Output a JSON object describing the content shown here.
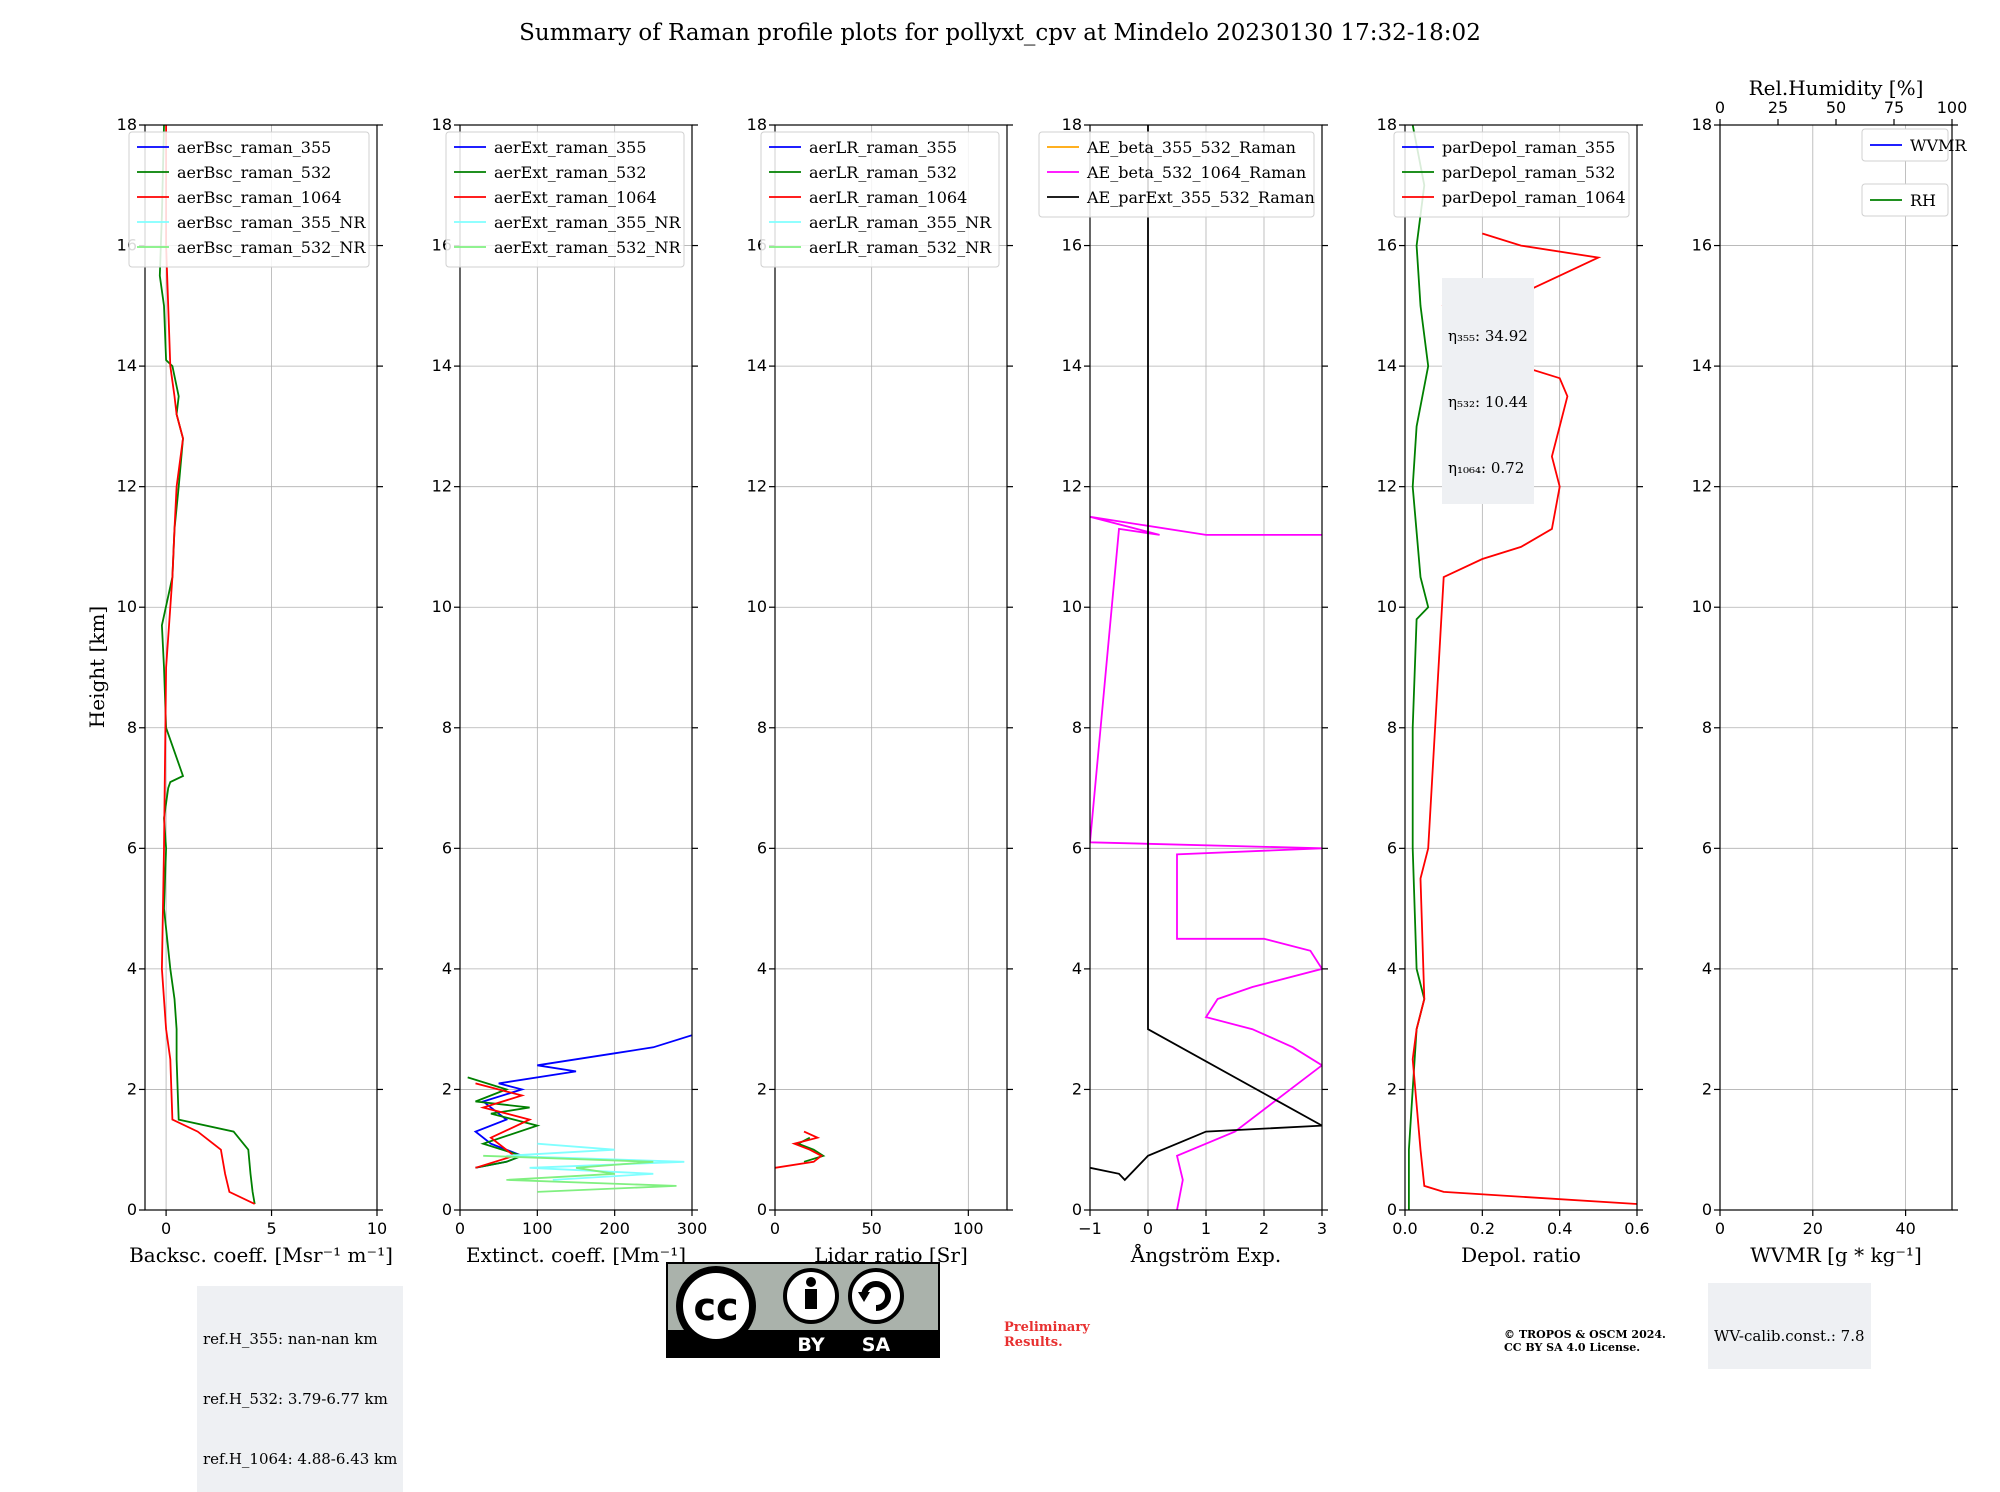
{
  "title": "Summary of Raman profile plots for pollyxt_cpv at Mindelo 20230130 17:32-18:02",
  "ylabel": "Height [km]",
  "colors": {
    "blue": "#0000ff",
    "green": "#008000",
    "red": "#ff0000",
    "cyan": "#80ffff",
    "lightgreen": "#80f080",
    "magenta": "#ff00ff",
    "orange": "#ffa500",
    "black": "#000000"
  },
  "chart_data": [
    {
      "type": "line",
      "xlabel": "Backsc. coeff. [Msr⁻¹ m⁻¹]",
      "xlim": [
        -1,
        10
      ],
      "ylim": [
        0,
        18
      ],
      "xticks": [
        0,
        5,
        10
      ],
      "yticks": [
        0,
        2,
        4,
        6,
        8,
        10,
        12,
        14,
        16,
        18
      ],
      "grid": true,
      "legend_position": "top-right",
      "series": [
        {
          "name": "aerBsc_raman_355",
          "color": "blue",
          "x": [],
          "y": []
        },
        {
          "name": "aerBsc_raman_532",
          "color": "green",
          "x": [
            4.2,
            4.1,
            4.0,
            3.9,
            3.2,
            0.6,
            0.5,
            0.5,
            0.4,
            0.2,
            -0.1,
            0.0,
            -0.1,
            0.1,
            0.2,
            0.8,
            0.0,
            -0.1,
            -0.2,
            0.3,
            0.4,
            0.6,
            0.8,
            0.5,
            0.6,
            0.3,
            0.0,
            -0.1,
            -0.3,
            -0.2,
            -0.1
          ],
          "y": [
            0.1,
            0.3,
            0.6,
            1.0,
            1.3,
            1.5,
            2.5,
            3.0,
            3.5,
            4.0,
            5.0,
            6.0,
            6.5,
            7.0,
            7.1,
            7.2,
            8.0,
            9.0,
            9.7,
            10.5,
            11.3,
            12.0,
            12.8,
            13.2,
            13.5,
            14.0,
            14.1,
            15.0,
            15.5,
            16.5,
            18.0
          ]
        },
        {
          "name": "aerBsc_raman_1064",
          "color": "red",
          "x": [
            4.2,
            3.0,
            2.8,
            2.6,
            1.5,
            0.3,
            0.2,
            0.0,
            -0.2,
            -0.1,
            0.0,
            0.3,
            0.4,
            0.5,
            0.8,
            0.5,
            0.4,
            0.2,
            0.1,
            0.0,
            0.0,
            0.0
          ],
          "y": [
            0.1,
            0.3,
            0.6,
            1.0,
            1.3,
            1.5,
            2.5,
            3.0,
            4.0,
            6.0,
            9.0,
            10.5,
            11.3,
            12.0,
            12.8,
            13.2,
            13.5,
            14.0,
            15.0,
            16.0,
            17.0,
            18.0
          ]
        },
        {
          "name": "aerBsc_raman_355_NR",
          "color": "cyan",
          "x": [],
          "y": []
        },
        {
          "name": "aerBsc_raman_532_NR",
          "color": "lightgreen",
          "x": [],
          "y": []
        }
      ],
      "info_text": [
        "ref.H_355: nan-nan km",
        "ref.H_532: 3.79-6.77 km",
        "ref.H_1064: 4.88-6.43 km"
      ]
    },
    {
      "type": "line",
      "xlabel": "Extinct. coeff. [Mm⁻¹]",
      "xlim": [
        0,
        300
      ],
      "ylim": [
        0,
        18
      ],
      "xticks": [
        0,
        100,
        200,
        300
      ],
      "yticks": [
        0,
        2,
        4,
        6,
        8,
        10,
        12,
        14,
        16,
        18
      ],
      "grid": true,
      "legend_position": "top-right",
      "series": [
        {
          "name": "aerExt_raman_355",
          "color": "blue",
          "x": [
            20,
            60,
            80,
            40,
            20,
            60,
            30,
            80,
            50,
            150,
            100,
            200,
            250,
            300
          ],
          "y": [
            0.7,
            0.8,
            0.9,
            1.1,
            1.3,
            1.5,
            1.8,
            2.0,
            2.1,
            2.3,
            2.4,
            2.6,
            2.7,
            2.9
          ]
        },
        {
          "name": "aerExt_raman_532",
          "color": "green",
          "x": [
            20,
            60,
            80,
            30,
            100,
            40,
            90,
            20,
            60,
            10
          ],
          "y": [
            0.7,
            0.8,
            0.9,
            1.1,
            1.4,
            1.6,
            1.7,
            1.8,
            2.0,
            2.2
          ]
        },
        {
          "name": "aerExt_raman_1064",
          "color": "red",
          "x": [
            20,
            70,
            40,
            90,
            30,
            80,
            20
          ],
          "y": [
            0.7,
            0.9,
            1.2,
            1.5,
            1.7,
            1.9,
            2.1
          ]
        },
        {
          "name": "aerExt_raman_355_NR",
          "color": "cyan",
          "x": [
            120,
            250,
            90,
            290,
            60,
            200,
            100
          ],
          "y": [
            0.5,
            0.6,
            0.7,
            0.8,
            0.9,
            1.0,
            1.1
          ]
        },
        {
          "name": "aerExt_raman_532_NR",
          "color": "lightgreen",
          "x": [
            100,
            280,
            60,
            200,
            150,
            250,
            30
          ],
          "y": [
            0.3,
            0.4,
            0.5,
            0.6,
            0.7,
            0.8,
            0.9
          ]
        }
      ]
    },
    {
      "type": "line",
      "xlabel": "Lidar ratio [Sr]",
      "xlim": [
        0,
        120
      ],
      "ylim": [
        0,
        18
      ],
      "xticks": [
        0,
        50,
        100
      ],
      "yticks": [
        0,
        2,
        4,
        6,
        8,
        10,
        12,
        14,
        16,
        18
      ],
      "grid": true,
      "legend_position": "top-right",
      "series": [
        {
          "name": "aerLR_raman_355",
          "color": "blue",
          "x": [],
          "y": []
        },
        {
          "name": "aerLR_raman_532",
          "color": "green",
          "x": [
            15,
            25,
            20,
            12,
            18
          ],
          "y": [
            0.8,
            0.9,
            1.0,
            1.1,
            1.2
          ]
        },
        {
          "name": "aerLR_raman_1064",
          "color": "red",
          "x": [
            0,
            20,
            24,
            18,
            10,
            22,
            15
          ],
          "y": [
            0.7,
            0.8,
            0.9,
            1.0,
            1.1,
            1.2,
            1.3
          ]
        },
        {
          "name": "aerLR_raman_355_NR",
          "color": "cyan",
          "x": [],
          "y": []
        },
        {
          "name": "aerLR_raman_532_NR",
          "color": "lightgreen",
          "x": [],
          "y": []
        }
      ]
    },
    {
      "type": "line",
      "xlabel": "Ångström Exp.",
      "xlim": [
        -1,
        3
      ],
      "ylim": [
        0,
        18
      ],
      "xticks": [
        -1,
        0,
        1,
        2,
        3
      ],
      "yticks": [
        0,
        2,
        4,
        6,
        8,
        10,
        12,
        14,
        16,
        18
      ],
      "grid": true,
      "legend_position": "top-right",
      "series": [
        {
          "name": "AE_beta_355_532_Raman",
          "color": "orange",
          "x": [],
          "y": []
        },
        {
          "name": "AE_beta_532_1064_Raman",
          "color": "magenta",
          "x": [
            0.5,
            0.6,
            0.5,
            1.0,
            1.5,
            3.0,
            2.5,
            1.8,
            1.0,
            1.2,
            1.8,
            3.0,
            2.8,
            2.0,
            0.5,
            0.5,
            3.0,
            -1.0,
            -0.5,
            0.2,
            -1.0,
            1.0,
            3.0
          ],
          "y": [
            0.0,
            0.5,
            0.9,
            1.1,
            1.3,
            2.4,
            2.7,
            3.0,
            3.2,
            3.5,
            3.7,
            4.0,
            4.3,
            4.5,
            4.5,
            5.9,
            6.0,
            6.1,
            11.3,
            11.2,
            11.5,
            11.2,
            11.2
          ]
        },
        {
          "name": "AE_parExt_355_532_Raman",
          "color": "black",
          "x": [
            -1.0,
            -0.5,
            -0.4,
            0.0,
            0.5,
            1.0,
            3.0,
            0.0,
            0.0,
            0.0
          ],
          "y": [
            0.7,
            0.6,
            0.5,
            0.9,
            1.1,
            1.3,
            1.4,
            3.0,
            4.0,
            18.0
          ]
        }
      ]
    },
    {
      "type": "line",
      "xlabel": "Depol. ratio",
      "xlim": [
        0.0,
        0.6
      ],
      "ylim": [
        0,
        18
      ],
      "xticks": [
        0.0,
        0.2,
        0.4,
        0.6
      ],
      "yticks": [
        0,
        2,
        4,
        6,
        8,
        10,
        12,
        14,
        16,
        18
      ],
      "grid": true,
      "legend_position": "top-right",
      "series": [
        {
          "name": "parDepol_raman_355",
          "color": "blue",
          "x": [],
          "y": []
        },
        {
          "name": "parDepol_raman_532",
          "color": "green",
          "x": [
            0.01,
            0.01,
            0.02,
            0.03,
            0.05,
            0.03,
            0.02,
            0.02,
            0.03,
            0.06,
            0.04,
            0.02,
            0.03,
            0.06,
            0.04,
            0.03,
            0.05,
            0.02
          ],
          "y": [
            0.0,
            1.0,
            2.0,
            3.0,
            3.5,
            4.0,
            6.0,
            8.0,
            9.8,
            10.0,
            10.5,
            12.0,
            13.0,
            14.0,
            15.0,
            16.0,
            17.0,
            18.0
          ]
        },
        {
          "name": "parDepol_raman_1064",
          "color": "red",
          "x": [
            0.6,
            0.1,
            0.05,
            0.04,
            0.02,
            0.03,
            0.05,
            0.04,
            0.06,
            0.1,
            0.2,
            0.3,
            0.38,
            0.4,
            0.38,
            0.4,
            0.42,
            0.4,
            0.3,
            0.2,
            0.1,
            0.3,
            0.4,
            0.5,
            0.3,
            0.2
          ],
          "y": [
            0.1,
            0.3,
            0.4,
            1.0,
            2.5,
            3.0,
            3.5,
            5.5,
            6.0,
            10.5,
            10.8,
            11.0,
            11.3,
            12.0,
            12.5,
            13.0,
            13.5,
            13.8,
            14.0,
            14.5,
            15.0,
            15.2,
            15.5,
            15.8,
            16.0,
            16.2
          ]
        }
      ],
      "info_text": [
        "η₃₅₅: 34.92",
        "η₅₃₂: 10.44",
        "η₁₀₆₄: 0.72"
      ]
    },
    {
      "type": "line",
      "xlabel": "WVMR [g * kg⁻¹]",
      "x2label": "Rel.Humidity [%]",
      "xlim": [
        0,
        50
      ],
      "x2lim": [
        0,
        100
      ],
      "ylim": [
        0,
        18
      ],
      "xticks": [
        0,
        20,
        40
      ],
      "x2ticks": [
        0,
        25,
        50,
        75,
        100
      ],
      "yticks": [
        0,
        2,
        4,
        6,
        8,
        10,
        12,
        14,
        16,
        18
      ],
      "grid": true,
      "legend_position": "top-right",
      "series": [
        {
          "name": "WVMR",
          "color": "blue",
          "x": [],
          "y": []
        },
        {
          "name": "RH",
          "color": "green",
          "x": [],
          "y": []
        }
      ],
      "info_text": [
        "WV-calib.const.: 7.8"
      ]
    }
  ],
  "footer": {
    "cc_letters": "cc",
    "cc_by": "BY",
    "cc_sa": "SA",
    "preliminary": [
      "Preliminary",
      "Results."
    ],
    "copyright": [
      "© TROPOS & OSCM 2024.",
      "CC BY SA 4.0 License."
    ]
  }
}
